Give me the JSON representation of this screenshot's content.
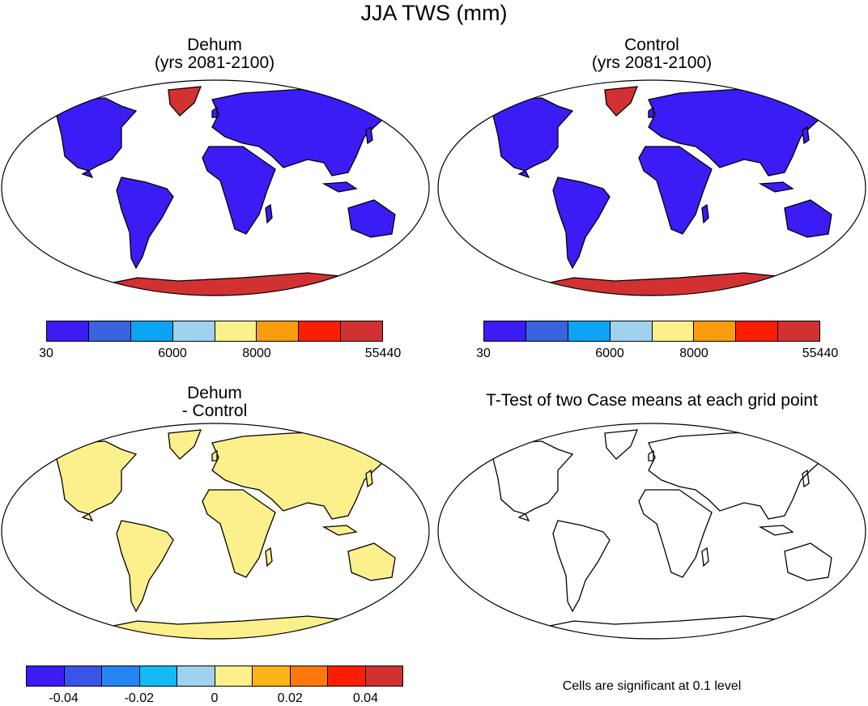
{
  "title": "JJA TWS (mm)",
  "panels": {
    "dehum": {
      "title_line1": "Dehum",
      "title_line2": "(yrs 2081-2100)",
      "land_color": "#3b1cf5",
      "ice_color": "#d23132"
    },
    "control": {
      "title_line1": "Control",
      "title_line2": "(yrs 2081-2100)",
      "land_color": "#3b1cf5",
      "ice_color": "#d23132"
    },
    "diff": {
      "title_line1": "Dehum",
      "title_line2": "- Control",
      "land_color": "#fbf08c",
      "ice_color": "#fbf08c"
    },
    "ttest": {
      "title_line1": "T-Test of two Case means at each grid point",
      "note": "Cells are significant at 0.1 level"
    }
  },
  "colorbars": {
    "absolute": {
      "colors": [
        "#3b1cf5",
        "#3a63e0",
        "#0da3f5",
        "#9fd2ee",
        "#fbf08c",
        "#f99d0e",
        "#fc1e04",
        "#d23132"
      ],
      "ticks": [
        {
          "label": "30",
          "pos": 0
        },
        {
          "label": "6000",
          "pos": 3
        },
        {
          "label": "8000",
          "pos": 5
        },
        {
          "label": "55440",
          "pos": 8
        }
      ]
    },
    "difference": {
      "colors": [
        "#3b1cf5",
        "#3a53e8",
        "#2486f2",
        "#13baf6",
        "#9fd2ee",
        "#fbf08c",
        "#fcb515",
        "#fc7a0c",
        "#fc1e04",
        "#d23132"
      ],
      "ticks": [
        {
          "label": "-0.04",
          "pos": 1
        },
        {
          "label": "-0.02",
          "pos": 3
        },
        {
          "label": "0",
          "pos": 5
        },
        {
          "label": "0.02",
          "pos": 7
        },
        {
          "label": "0.04",
          "pos": 9
        }
      ]
    }
  }
}
